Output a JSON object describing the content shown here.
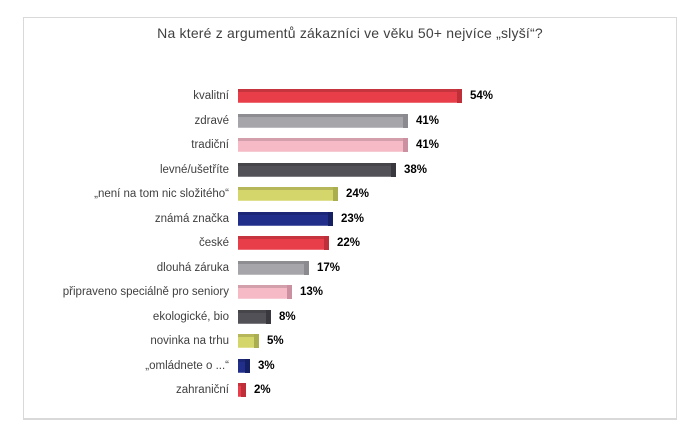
{
  "window": {
    "background": "#ffffff",
    "frame_border_color": "#d9d9d9"
  },
  "chart_data": {
    "type": "bar",
    "orientation": "horizontal",
    "title": "Na které z argumentů zákazníci ve věku 50+ nejvíce „slyší“?",
    "categories": [
      "kvalitní",
      "zdravé",
      "tradiční",
      "levné/ušetříte",
      "„není na tom nic složitého“",
      "známá značka",
      "české",
      "dlouhá záruka",
      "připraveno speciálně pro seniory",
      "ekologické, bio",
      "novinka na trhu",
      "„omládnete o ...“",
      "zahraniční"
    ],
    "values": [
      54,
      41,
      41,
      38,
      24,
      23,
      22,
      17,
      13,
      8,
      5,
      3,
      2
    ],
    "value_labels": [
      "54%",
      "41%",
      "41%",
      "38%",
      "24%",
      "23%",
      "22%",
      "17%",
      "13%",
      "8%",
      "5%",
      "3%",
      "2%"
    ],
    "bar_colors": [
      "#e73e49",
      "#a6a6aa",
      "#f5bac6",
      "#515157",
      "#d4d66b",
      "#212f8b",
      "#e73e49",
      "#a6a6aa",
      "#f5bac6",
      "#515157",
      "#d4d66b",
      "#212f8b",
      "#e73e49"
    ],
    "bar_colors_dark": [
      "#bf2f3a",
      "#8b8b8f",
      "#cb91a0",
      "#38383e",
      "#abae4e",
      "#151f63",
      "#bf2f3a",
      "#8b8b8f",
      "#cb91a0",
      "#38383e",
      "#abae4e",
      "#151f63",
      "#bf2f3a"
    ],
    "xlim": [
      0,
      60
    ],
    "grid": false,
    "legend": false,
    "data_labels": "outside-end",
    "xlabel": "",
    "ylabel": ""
  }
}
